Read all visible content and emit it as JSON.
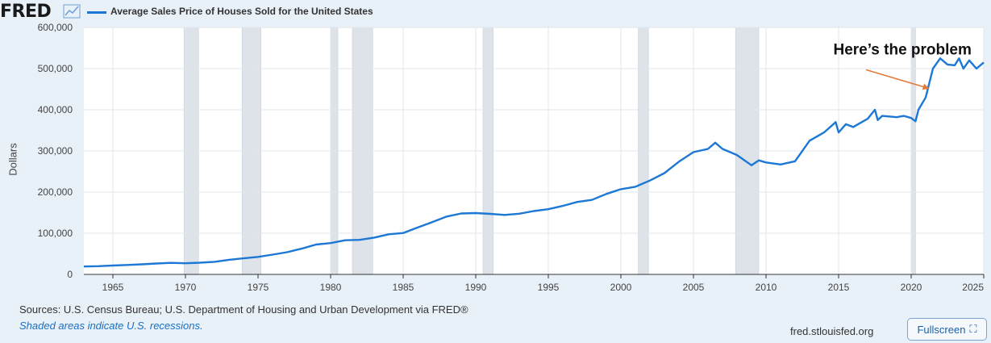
{
  "header": {
    "logo": "FRED",
    "chart_icon": "line-chart-icon",
    "series_name": "Average Sales Price of Houses Sold for the United States"
  },
  "colors": {
    "series": "#1c78d4",
    "recession": "#dde3e9",
    "annotation_arrow": "#e07a3a",
    "background": "#e8f0f8"
  },
  "footer": {
    "sources": "Sources: U.S. Census Bureau; U.S. Department of Housing and Urban Development via FRED®",
    "recession_note": "Shaded areas indicate U.S. recessions.",
    "site": "fred.stlouisfed.org",
    "fullscreen_label": "Fullscreen",
    "fullscreen_icon": "expand-icon"
  },
  "chart_data": {
    "type": "line",
    "title": "Average Sales Price of Houses Sold for the United States",
    "ylabel": "Dollars",
    "xlabel": "",
    "xlim": [
      1963.0,
      2025.0
    ],
    "ylim": [
      0,
      600000
    ],
    "x_ticks": [
      {
        "value": 1965,
        "label": "1965"
      },
      {
        "value": 1970,
        "label": "1970"
      },
      {
        "value": 1975,
        "label": "1975"
      },
      {
        "value": 1980,
        "label": "1980"
      },
      {
        "value": 1985,
        "label": "1985"
      },
      {
        "value": 1990,
        "label": "1990"
      },
      {
        "value": 1995,
        "label": "1995"
      },
      {
        "value": 2000,
        "label": "2000"
      },
      {
        "value": 2005,
        "label": "2005"
      },
      {
        "value": 2010,
        "label": "2010"
      },
      {
        "value": 2015,
        "label": "2015"
      },
      {
        "value": 2020,
        "label": "2020"
      },
      {
        "value": 2025,
        "label": "2025"
      }
    ],
    "y_ticks": [
      {
        "value": 0,
        "label": "0"
      },
      {
        "value": 100000,
        "label": "100,000"
      },
      {
        "value": 200000,
        "label": "200,000"
      },
      {
        "value": 300000,
        "label": "300,000"
      },
      {
        "value": 400000,
        "label": "400,000"
      },
      {
        "value": 500000,
        "label": "500,000"
      },
      {
        "value": 600000,
        "label": "600,000"
      }
    ],
    "grid": true,
    "recessions": [
      [
        1969.9,
        1970.9
      ],
      [
        1973.9,
        1975.2
      ],
      [
        1980.0,
        1980.5
      ],
      [
        1981.5,
        1982.9
      ],
      [
        1990.5,
        1991.2
      ],
      [
        2001.2,
        2001.9
      ],
      [
        2007.9,
        2009.5
      ],
      [
        2020.0,
        2020.3
      ]
    ],
    "series": [
      {
        "name": "Average Sales Price of Houses Sold for the United States",
        "x": [
          1963.0,
          1964.0,
          1965.0,
          1966.0,
          1967.0,
          1968.0,
          1969.0,
          1970.0,
          1971.0,
          1972.0,
          1973.0,
          1974.0,
          1975.0,
          1976.0,
          1977.0,
          1978.0,
          1979.0,
          1980.0,
          1981.0,
          1982.0,
          1983.0,
          1984.0,
          1985.0,
          1986.0,
          1987.0,
          1988.0,
          1989.0,
          1990.0,
          1991.0,
          1992.0,
          1993.0,
          1994.0,
          1995.0,
          1996.0,
          1997.0,
          1998.0,
          1999.0,
          2000.0,
          2001.0,
          2002.0,
          2003.0,
          2004.0,
          2005.0,
          2006.0,
          2006.5,
          2007.0,
          2008.0,
          2009.0,
          2009.5,
          2010.0,
          2011.0,
          2012.0,
          2013.0,
          2014.0,
          2014.8,
          2015.0,
          2015.5,
          2016.0,
          2017.0,
          2017.5,
          2017.7,
          2018.0,
          2019.0,
          2019.5,
          2020.0,
          2020.3,
          2020.5,
          2021.0,
          2021.5,
          2022.0,
          2022.5,
          2023.0,
          2023.3,
          2023.6,
          2024.0,
          2024.5,
          2025.0
        ],
        "y": [
          19300,
          20000,
          21500,
          23000,
          24500,
          26500,
          28000,
          27000,
          28500,
          30500,
          35500,
          39000,
          42500,
          48000,
          54000,
          62500,
          72500,
          76000,
          83000,
          84000,
          89500,
          97500,
          100500,
          114000,
          127000,
          140500,
          148000,
          149000,
          147000,
          144500,
          147500,
          154000,
          158500,
          166500,
          176000,
          181000,
          195500,
          207000,
          213000,
          228000,
          246000,
          274000,
          297000,
          305000,
          320000,
          305000,
          290000,
          265000,
          277000,
          272000,
          267000,
          275000,
          325000,
          345000,
          370000,
          345000,
          365000,
          358000,
          378000,
          400000,
          375000,
          385000,
          382000,
          385000,
          380000,
          372000,
          400000,
          430000,
          500000,
          525000,
          510000,
          508000,
          525000,
          500000,
          520000,
          500000,
          515000
        ]
      }
    ],
    "annotations": [
      {
        "text": "Here’s the problem",
        "x": 2019.4,
        "y": 534000,
        "arrow_from": [
          2016.9,
          497000
        ],
        "arrow_to": [
          2021.2,
          452000
        ]
      }
    ]
  }
}
